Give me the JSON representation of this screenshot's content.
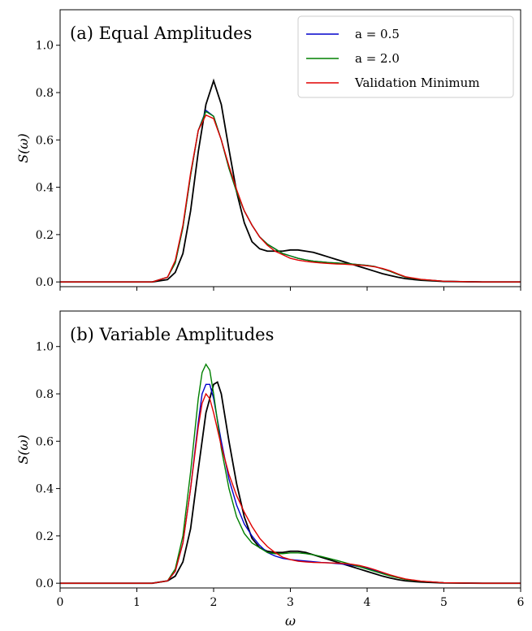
{
  "chart_data": [
    {
      "type": "line",
      "title": "(a) Equal Amplitudes",
      "ylabel": "S(ω)",
      "xlim": [
        0,
        6
      ],
      "ylim": [
        -0.02,
        1.15
      ],
      "yticks": [
        "0.0",
        "0.2",
        "0.4",
        "0.6",
        "0.8",
        "1.0"
      ],
      "xticks": [
        "0",
        "1",
        "2",
        "3",
        "4",
        "5",
        "6"
      ],
      "show_xtick_labels": false,
      "legend": {
        "placement": "top-right",
        "entries": [
          {
            "label": "a = 0.5",
            "color": "#0000cc"
          },
          {
            "label": "a = 2.0",
            "color": "#008000"
          },
          {
            "label": "Validation Minimum",
            "color": "#e00000"
          }
        ]
      },
      "series": [
        {
          "color": "#000000",
          "x": [
            0,
            1.2,
            1.4,
            1.5,
            1.6,
            1.7,
            1.8,
            1.9,
            2.0,
            2.1,
            2.2,
            2.3,
            2.4,
            2.5,
            2.6,
            2.7,
            2.8,
            2.9,
            3.0,
            3.1,
            3.2,
            3.3,
            3.4,
            3.5,
            3.6,
            3.7,
            3.8,
            3.9,
            4.0,
            4.1,
            4.2,
            4.3,
            4.4,
            4.5,
            4.7,
            5.0,
            5.5,
            6.0
          ],
          "y": [
            0,
            0.0,
            0.01,
            0.04,
            0.12,
            0.3,
            0.55,
            0.75,
            0.85,
            0.75,
            0.56,
            0.38,
            0.25,
            0.17,
            0.14,
            0.13,
            0.13,
            0.13,
            0.135,
            0.135,
            0.13,
            0.125,
            0.115,
            0.105,
            0.095,
            0.085,
            0.075,
            0.065,
            0.055,
            0.045,
            0.035,
            0.027,
            0.02,
            0.014,
            0.007,
            0.002,
            0.0,
            0.0
          ]
        },
        {
          "color": "#0000cc",
          "x": [
            0,
            1.2,
            1.4,
            1.5,
            1.6,
            1.7,
            1.8,
            1.9,
            2.0,
            2.1,
            2.2,
            2.3,
            2.4,
            2.5,
            2.6,
            2.7,
            2.8,
            2.9,
            3.0,
            3.1,
            3.2,
            3.3,
            3.4,
            3.5,
            3.6,
            3.7,
            3.8,
            3.9,
            4.0,
            4.1,
            4.2,
            4.3,
            4.4,
            4.5,
            4.7,
            5.0,
            5.5,
            6.0
          ],
          "y": [
            0,
            0.0,
            0.02,
            0.08,
            0.23,
            0.45,
            0.64,
            0.725,
            0.7,
            0.6,
            0.48,
            0.38,
            0.3,
            0.24,
            0.19,
            0.16,
            0.14,
            0.12,
            0.11,
            0.1,
            0.093,
            0.088,
            0.085,
            0.082,
            0.08,
            0.078,
            0.076,
            0.073,
            0.07,
            0.065,
            0.055,
            0.045,
            0.032,
            0.02,
            0.01,
            0.003,
            0.0,
            0.0
          ]
        },
        {
          "color": "#008000",
          "x": [
            0,
            1.2,
            1.4,
            1.5,
            1.6,
            1.7,
            1.8,
            1.9,
            2.0,
            2.1,
            2.2,
            2.3,
            2.4,
            2.5,
            2.6,
            2.7,
            2.8,
            2.9,
            3.0,
            3.1,
            3.2,
            3.3,
            3.4,
            3.5,
            3.6,
            3.7,
            3.8,
            3.9,
            4.0,
            4.1,
            4.2,
            4.3,
            4.4,
            4.5,
            4.7,
            5.0,
            5.5,
            6.0
          ],
          "y": [
            0,
            0.0,
            0.02,
            0.08,
            0.23,
            0.45,
            0.64,
            0.72,
            0.7,
            0.6,
            0.48,
            0.38,
            0.3,
            0.24,
            0.19,
            0.16,
            0.14,
            0.12,
            0.11,
            0.1,
            0.093,
            0.088,
            0.085,
            0.082,
            0.08,
            0.078,
            0.076,
            0.073,
            0.07,
            0.065,
            0.055,
            0.045,
            0.032,
            0.02,
            0.01,
            0.003,
            0.0,
            0.0
          ]
        },
        {
          "color": "#e00000",
          "x": [
            0,
            1.2,
            1.4,
            1.5,
            1.6,
            1.7,
            1.8,
            1.9,
            2.0,
            2.1,
            2.2,
            2.3,
            2.4,
            2.5,
            2.6,
            2.7,
            2.8,
            2.9,
            3.0,
            3.1,
            3.2,
            3.3,
            3.4,
            3.5,
            3.6,
            3.7,
            3.8,
            3.9,
            4.0,
            4.1,
            4.2,
            4.3,
            4.4,
            4.5,
            4.7,
            5.0,
            5.5,
            6.0
          ],
          "y": [
            0,
            0.0,
            0.02,
            0.09,
            0.24,
            0.46,
            0.64,
            0.705,
            0.69,
            0.6,
            0.49,
            0.39,
            0.3,
            0.24,
            0.19,
            0.155,
            0.13,
            0.115,
            0.1,
            0.092,
            0.087,
            0.083,
            0.08,
            0.078,
            0.076,
            0.075,
            0.073,
            0.071,
            0.068,
            0.064,
            0.057,
            0.047,
            0.034,
            0.022,
            0.011,
            0.003,
            0.0,
            0.0
          ]
        }
      ]
    },
    {
      "type": "line",
      "title": "(b) Variable Amplitudes",
      "ylabel": "S(ω)",
      "xlabel": "ω",
      "xlim": [
        0,
        6
      ],
      "ylim": [
        -0.02,
        1.15
      ],
      "yticks": [
        "0.0",
        "0.2",
        "0.4",
        "0.6",
        "0.8",
        "1.0"
      ],
      "xticks": [
        "0",
        "1",
        "2",
        "3",
        "4",
        "5",
        "6"
      ],
      "show_xtick_labels": true,
      "series": [
        {
          "color": "#000000",
          "x": [
            0,
            1.2,
            1.4,
            1.5,
            1.6,
            1.7,
            1.8,
            1.9,
            2.0,
            2.05,
            2.1,
            2.2,
            2.3,
            2.4,
            2.5,
            2.6,
            2.7,
            2.8,
            2.9,
            3.0,
            3.1,
            3.2,
            3.3,
            3.4,
            3.5,
            3.6,
            3.7,
            3.8,
            3.9,
            4.0,
            4.1,
            4.2,
            4.3,
            4.4,
            4.5,
            4.7,
            5.0,
            5.5,
            6.0
          ],
          "y": [
            0,
            0.0,
            0.01,
            0.03,
            0.09,
            0.23,
            0.48,
            0.72,
            0.84,
            0.85,
            0.8,
            0.6,
            0.42,
            0.28,
            0.19,
            0.15,
            0.135,
            0.13,
            0.13,
            0.135,
            0.135,
            0.13,
            0.12,
            0.11,
            0.1,
            0.09,
            0.08,
            0.07,
            0.06,
            0.05,
            0.04,
            0.03,
            0.022,
            0.015,
            0.01,
            0.005,
            0.001,
            0.0,
            0.0
          ]
        },
        {
          "color": "#0000cc",
          "x": [
            0,
            1.2,
            1.4,
            1.5,
            1.6,
            1.7,
            1.8,
            1.85,
            1.9,
            1.95,
            2.0,
            2.1,
            2.2,
            2.3,
            2.4,
            2.5,
            2.6,
            2.7,
            2.8,
            2.9,
            3.0,
            3.1,
            3.2,
            3.3,
            3.4,
            3.5,
            3.6,
            3.7,
            3.8,
            3.9,
            4.0,
            4.1,
            4.2,
            4.3,
            4.4,
            4.5,
            4.7,
            5.0,
            5.5,
            6.0
          ],
          "y": [
            0,
            0.0,
            0.01,
            0.05,
            0.17,
            0.4,
            0.68,
            0.8,
            0.84,
            0.84,
            0.78,
            0.6,
            0.44,
            0.33,
            0.25,
            0.2,
            0.16,
            0.13,
            0.115,
            0.105,
            0.1,
            0.097,
            0.094,
            0.091,
            0.088,
            0.086,
            0.083,
            0.08,
            0.076,
            0.07,
            0.063,
            0.054,
            0.044,
            0.034,
            0.025,
            0.017,
            0.008,
            0.002,
            0.0,
            0.0
          ]
        },
        {
          "color": "#008000",
          "x": [
            0,
            1.2,
            1.4,
            1.5,
            1.6,
            1.7,
            1.8,
            1.85,
            1.9,
            1.95,
            2.0,
            2.1,
            2.2,
            2.3,
            2.4,
            2.5,
            2.6,
            2.7,
            2.8,
            2.9,
            3.0,
            3.1,
            3.2,
            3.3,
            3.4,
            3.5,
            3.6,
            3.7,
            3.8,
            3.9,
            4.0,
            4.1,
            4.2,
            4.3,
            4.4,
            4.5,
            4.7,
            5.0,
            5.5,
            6.0
          ],
          "y": [
            0,
            0.0,
            0.01,
            0.06,
            0.2,
            0.47,
            0.78,
            0.89,
            0.925,
            0.9,
            0.8,
            0.57,
            0.4,
            0.28,
            0.21,
            0.17,
            0.15,
            0.13,
            0.125,
            0.125,
            0.128,
            0.128,
            0.125,
            0.12,
            0.113,
            0.105,
            0.097,
            0.088,
            0.079,
            0.07,
            0.06,
            0.05,
            0.04,
            0.031,
            0.023,
            0.016,
            0.008,
            0.002,
            0.0,
            0.0
          ]
        },
        {
          "color": "#e00000",
          "x": [
            0,
            1.2,
            1.4,
            1.5,
            1.6,
            1.7,
            1.8,
            1.85,
            1.9,
            1.95,
            2.0,
            2.1,
            2.2,
            2.3,
            2.4,
            2.5,
            2.6,
            2.7,
            2.8,
            2.9,
            3.0,
            3.1,
            3.2,
            3.3,
            3.4,
            3.5,
            3.6,
            3.7,
            3.8,
            3.9,
            4.0,
            4.1,
            4.2,
            4.3,
            4.4,
            4.5,
            4.7,
            5.0,
            5.5,
            6.0
          ],
          "y": [
            0,
            0.0,
            0.01,
            0.05,
            0.17,
            0.4,
            0.66,
            0.76,
            0.8,
            0.78,
            0.72,
            0.58,
            0.46,
            0.37,
            0.3,
            0.24,
            0.19,
            0.155,
            0.13,
            0.11,
            0.1,
            0.093,
            0.09,
            0.088,
            0.087,
            0.086,
            0.085,
            0.083,
            0.08,
            0.075,
            0.067,
            0.057,
            0.046,
            0.035,
            0.026,
            0.018,
            0.009,
            0.002,
            0.0,
            0.0
          ]
        }
      ]
    }
  ]
}
